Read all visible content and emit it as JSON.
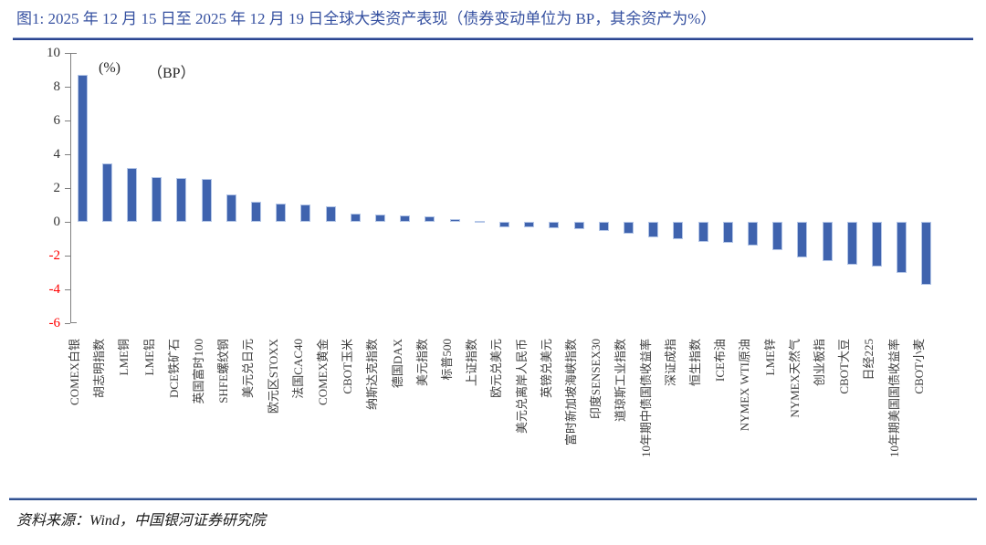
{
  "header": {
    "title": "图1: 2025 年 12 月 15 日至 2025 年 12 月 19 日全球大类资产表现（债券变动单位为 BP，其余资产为%）"
  },
  "footer": {
    "source": "资料来源：Wind，中国银河证券研究院"
  },
  "colors": {
    "title_blue": "#3550A0",
    "rule_navy": "#2B4590",
    "bar_fill": "#3F63AE",
    "bar_border": "#B4C6E7",
    "axis_gray": "#7F7F7F",
    "tick_label": "#333333",
    "negative_tick_label": "#FF0000",
    "category_label": "#3F3F3F"
  },
  "chart_data": {
    "type": "bar",
    "title": "2025 年 12 月 15 日至 2025 年 12 月 19 日全球大类资产表现（债券变动单位为 BP，其余资产为%）",
    "unit_annotations": [
      "(%)",
      "（BP）"
    ],
    "xlabel": "",
    "ylabel": "",
    "ylim": [
      -6,
      10
    ],
    "yticks": [
      10,
      8,
      6,
      4,
      2,
      0,
      -2,
      -4,
      -6
    ],
    "grid": false,
    "legend": "none",
    "categories": [
      "COMEX白银",
      "胡志明指数",
      "LME铜",
      "LME铝",
      "DCE铁矿石",
      "英国富时100",
      "SHFE螺纹钢",
      "美元兑日元",
      "欧元区STOXX",
      "法国CAC40",
      "COMEX黄金",
      "CBOT玉米",
      "纳斯达克指数",
      "德国DAX",
      "美元指数",
      "标普500",
      "上证指数",
      "欧元兑美元",
      "美元兑离岸人民币",
      "英镑兑美元",
      "富时新加坡海峡指数",
      "印度SENSEX30",
      "道琼斯工业指数",
      "10年期中债国债收益率",
      "深证成指",
      "恒生指数",
      "ICE布油",
      "NYMEX WTI原油",
      "LME锌",
      "NYMEX天然气",
      "创业板指",
      "CBOT大豆",
      "日经225",
      "10年期美国国债收益率",
      "CBOT小麦"
    ],
    "values": [
      8.7,
      3.45,
      3.2,
      2.65,
      2.6,
      2.55,
      1.6,
      1.2,
      1.1,
      1.02,
      0.9,
      0.5,
      0.42,
      0.36,
      0.3,
      0.15,
      0.08,
      -0.3,
      -0.33,
      -0.37,
      -0.42,
      -0.53,
      -0.7,
      -0.9,
      -1.0,
      -1.2,
      -1.25,
      -1.4,
      -1.65,
      -2.1,
      -2.3,
      -2.55,
      -2.65,
      -3.0,
      -3.75
    ]
  }
}
